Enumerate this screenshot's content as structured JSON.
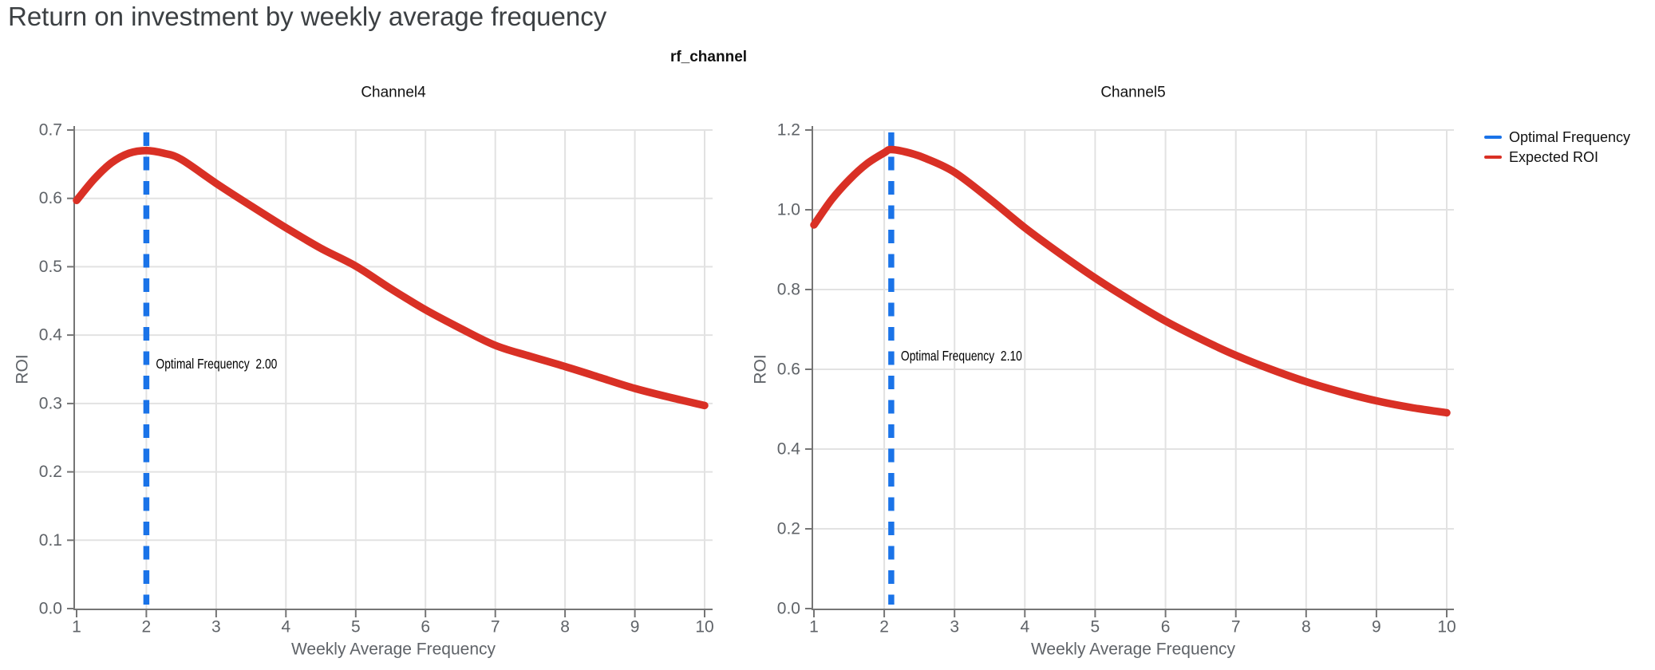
{
  "page_title": "Return on investment by weekly average frequency",
  "figure_title": "rf_channel",
  "legend": {
    "items": [
      {
        "label": "Optimal Frequency",
        "color": "#1A73E8"
      },
      {
        "label": "Expected ROI",
        "color": "#D93025"
      }
    ]
  },
  "colors": {
    "optimal_frequency_blue": "#1A73E8",
    "expected_roi_red": "#D93025",
    "axis_gray": "#757575",
    "grid_gray": "#E2E2E2",
    "tick_label_gray": "#5F6368",
    "title_gray": "#3C4043",
    "text_black": "#111111",
    "background": "#FFFFFF"
  },
  "chart_data": [
    {
      "type": "line",
      "title": "Channel4",
      "xlabel": "Weekly Average Frequency",
      "ylabel": "ROI",
      "xlim": [
        1,
        10
      ],
      "ylim": [
        0,
        0.7
      ],
      "x_tick_labels": [
        "1",
        "2",
        "3",
        "4",
        "5",
        "6",
        "7",
        "8",
        "9",
        "10"
      ],
      "x_ticks": [
        1,
        2,
        3,
        4,
        5,
        6,
        7,
        8,
        9,
        10
      ],
      "y_tick_labels": [
        "0.0",
        "0.1",
        "0.2",
        "0.3",
        "0.4",
        "0.5",
        "0.6",
        "0.7"
      ],
      "y_ticks": [
        0.0,
        0.1,
        0.2,
        0.3,
        0.4,
        0.5,
        0.6,
        0.7
      ],
      "optimal_frequency": 2.0,
      "annotation": {
        "label": "Optimal Frequency",
        "value": "2.00"
      },
      "legend_position": "none",
      "grid": true,
      "series": [
        {
          "name": "Expected ROI",
          "x": [
            1,
            1.25,
            1.5,
            1.75,
            2,
            2.25,
            2.5,
            3,
            3.5,
            4,
            4.5,
            5,
            5.5,
            6,
            6.5,
            7,
            7.5,
            8,
            8.5,
            9,
            9.5,
            10
          ],
          "y": [
            0.597,
            0.628,
            0.652,
            0.666,
            0.67,
            0.666,
            0.657,
            0.622,
            0.589,
            0.557,
            0.527,
            0.501,
            0.468,
            0.437,
            0.41,
            0.385,
            0.369,
            0.354,
            0.338,
            0.322,
            0.309,
            0.297
          ]
        }
      ]
    },
    {
      "type": "line",
      "title": "Channel5",
      "xlabel": "Weekly Average Frequency",
      "ylabel": "ROI",
      "xlim": [
        1,
        10
      ],
      "ylim": [
        0,
        1.2
      ],
      "x_tick_labels": [
        "1",
        "2",
        "3",
        "4",
        "5",
        "6",
        "7",
        "8",
        "9",
        "10"
      ],
      "x_ticks": [
        1,
        2,
        3,
        4,
        5,
        6,
        7,
        8,
        9,
        10
      ],
      "y_tick_labels": [
        "0.0",
        "0.2",
        "0.4",
        "0.6",
        "0.8",
        "1.0",
        "1.2"
      ],
      "y_ticks": [
        0.0,
        0.2,
        0.4,
        0.6,
        0.8,
        1.0,
        1.2
      ],
      "optimal_frequency": 2.1,
      "annotation": {
        "label": "Optimal Frequency",
        "value": "2.10"
      },
      "legend_position": "none",
      "grid": true,
      "series": [
        {
          "name": "Expected ROI",
          "x": [
            1,
            1.25,
            1.5,
            1.75,
            2,
            2.1,
            2.35,
            2.6,
            3,
            3.5,
            4,
            4.5,
            5,
            5.5,
            6,
            6.5,
            7,
            7.5,
            8,
            8.5,
            9,
            9.5,
            10
          ],
          "y": [
            0.962,
            1.025,
            1.075,
            1.115,
            1.143,
            1.151,
            1.143,
            1.128,
            1.094,
            1.027,
            0.955,
            0.89,
            0.829,
            0.773,
            0.721,
            0.676,
            0.635,
            0.6,
            0.569,
            0.543,
            0.521,
            0.504,
            0.491
          ]
        }
      ]
    }
  ]
}
